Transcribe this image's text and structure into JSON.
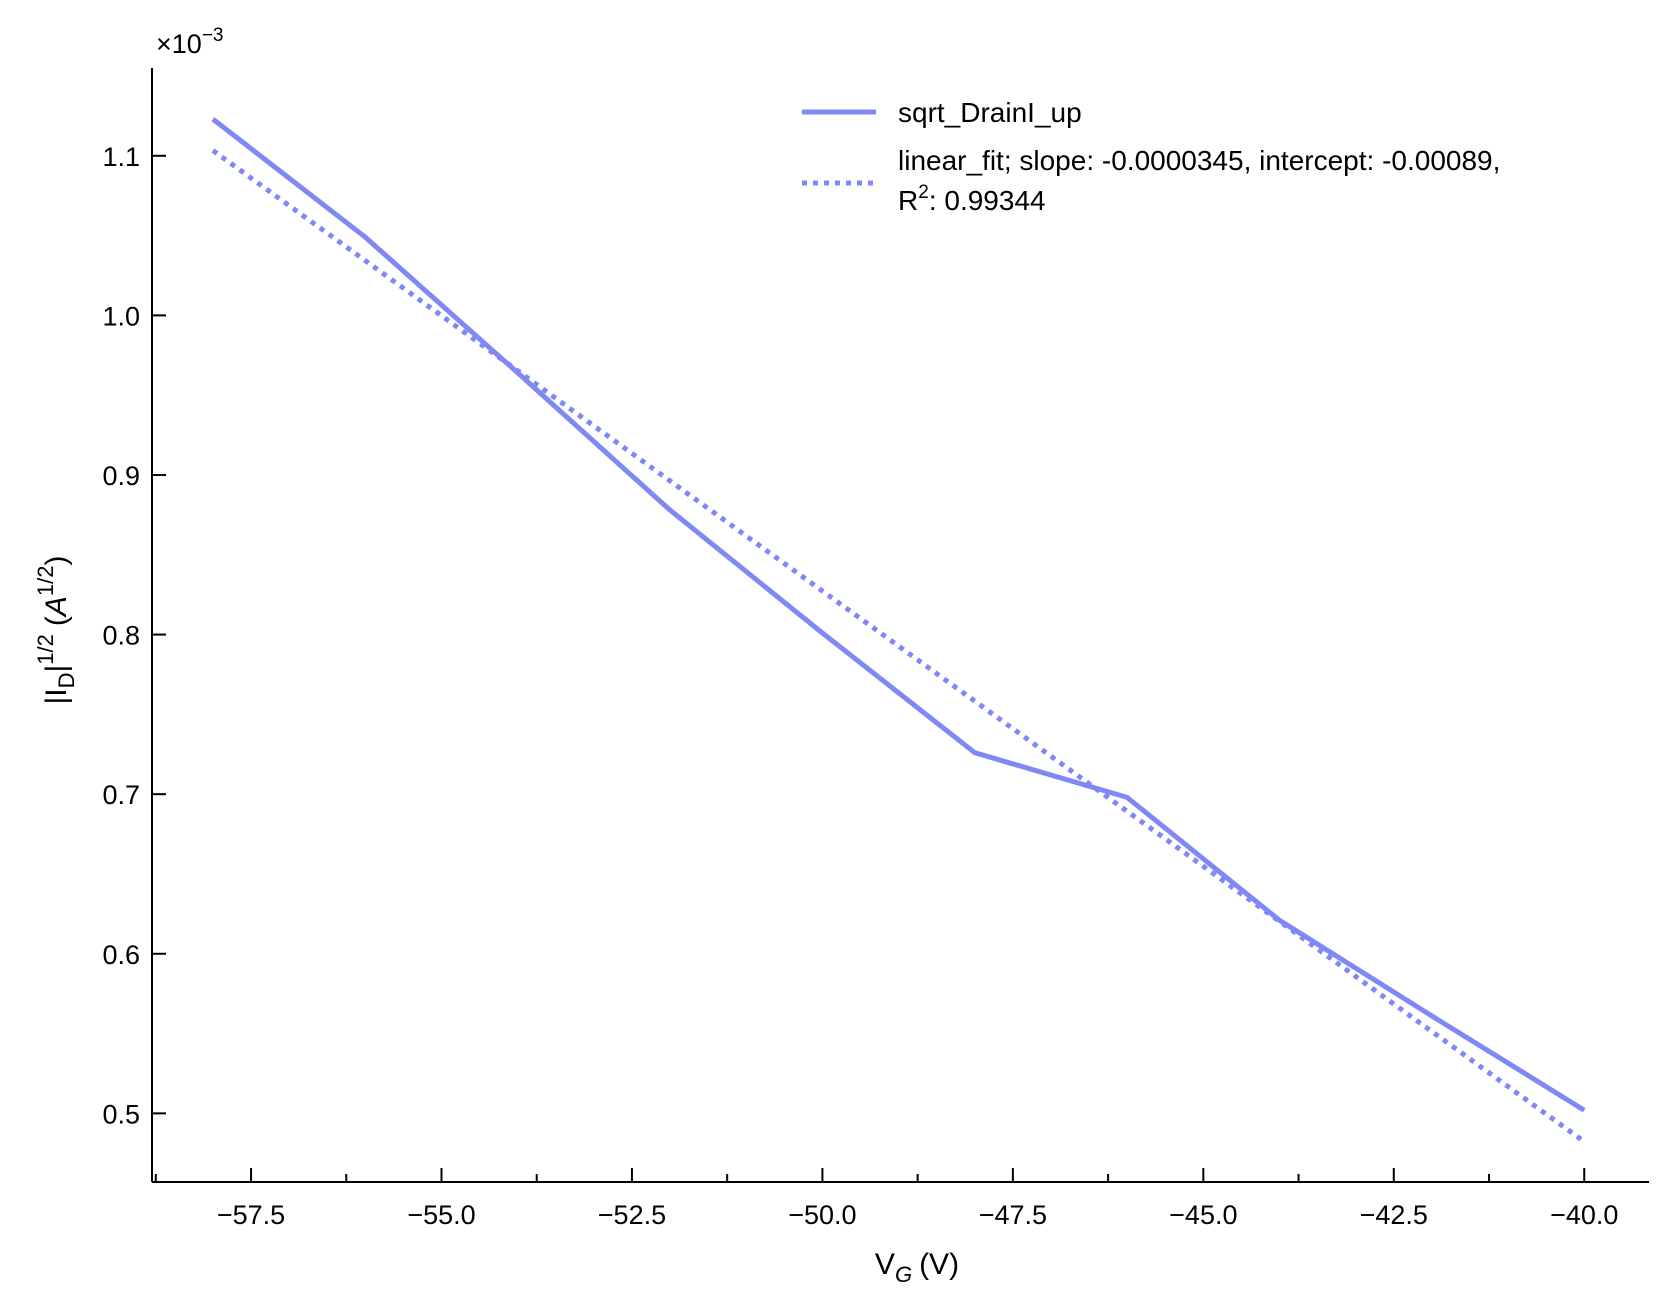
{
  "chart_data": {
    "type": "line",
    "xlabel": "V_G (V)",
    "xlabel_main": "V",
    "xlabel_sub": "G",
    "xlabel_unit": "(V)",
    "ylabel": "|I_D|^1/2 (A^1/2)",
    "ylabel_parts": {
      "bar_open": "|I",
      "sub": "D",
      "bar_close": "|",
      "exp": "1/2",
      "unit_open": "(",
      "unit_var": "A",
      "unit_exp": "1/2",
      "unit_close": ")"
    },
    "y_offset_text": "×10",
    "y_offset_exp": "−3",
    "xlim": [
      -58.8,
      -39.15
    ],
    "ylim": [
      0.000457,
      0.001155
    ],
    "x_ticks": [
      -57.5,
      -55.0,
      -52.5,
      -50.0,
      -47.5,
      -45.0,
      -42.5,
      -40.0
    ],
    "x_tick_labels": [
      "−57.5",
      "−55.0",
      "−52.5",
      "−50.0",
      "−47.5",
      "−45.0",
      "−42.5",
      "−40.0"
    ],
    "x_minor_ticks": [
      -58.75,
      -56.25,
      -53.75,
      -51.25,
      -48.75,
      -46.25,
      -43.75,
      -41.25
    ],
    "y_ticks": [
      0.0005,
      0.0006,
      0.0007,
      0.0008,
      0.0009,
      0.001,
      0.0011
    ],
    "y_tick_labels": [
      "0.5",
      "0.6",
      "0.7",
      "0.8",
      "0.9",
      "1.0",
      "1.1"
    ],
    "grid": false,
    "legend_position": "top-right",
    "series": [
      {
        "name": "sqrt_DrainI_up",
        "style": "solid",
        "color": "#7f88f5",
        "x": [
          -58.0,
          -56.0,
          -54.0,
          -52.0,
          -50.0,
          -48.0,
          -46.0,
          -44.0,
          -42.0,
          -40.0
        ],
        "y": [
          0.001123,
          0.001049,
          0.000964,
          0.000878,
          0.000801,
          0.000726,
          0.000698,
          0.000621,
          0.000561,
          0.000502
        ]
      },
      {
        "name": "linear_fit; slope: -0.0000345, intercept: -0.00089,",
        "name_line2_prefix": "R",
        "name_line2_exp": "2",
        "name_line2_suffix": ": 0.99344",
        "style": "dotted",
        "color": "#7f88f5",
        "x": [
          -58.0,
          -40.0
        ],
        "y": [
          0.0011033,
          0.0004823
        ]
      }
    ]
  }
}
